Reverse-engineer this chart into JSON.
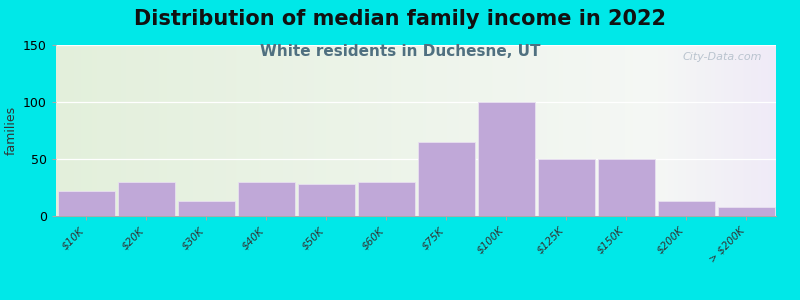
{
  "title": "Distribution of median family income in 2022",
  "subtitle": "White residents in Duchesne, UT",
  "ylabel": "families",
  "categories": [
    "$10K",
    "$20K",
    "$30K",
    "$40K",
    "$50K",
    "$60K",
    "$75K",
    "$100K",
    "$125K",
    "$150K",
    "$200K",
    "> $200K"
  ],
  "values": [
    22,
    30,
    13,
    30,
    28,
    30,
    65,
    100,
    50,
    50,
    13,
    8
  ],
  "bar_color": "#c0a8d8",
  "bar_edge_color": "#e8e0f0",
  "ylim": [
    0,
    150
  ],
  "yticks": [
    0,
    50,
    100,
    150
  ],
  "background_outer": "#00e8e8",
  "plot_bg_green": "#e4f0dc",
  "plot_bg_white": "#f5f5fa",
  "plot_bg_right": "#ede8f5",
  "title_fontsize": 15,
  "subtitle_fontsize": 11,
  "subtitle_color": "#507080",
  "watermark": "City-Data.com",
  "watermark_color": "#b0bcc8"
}
